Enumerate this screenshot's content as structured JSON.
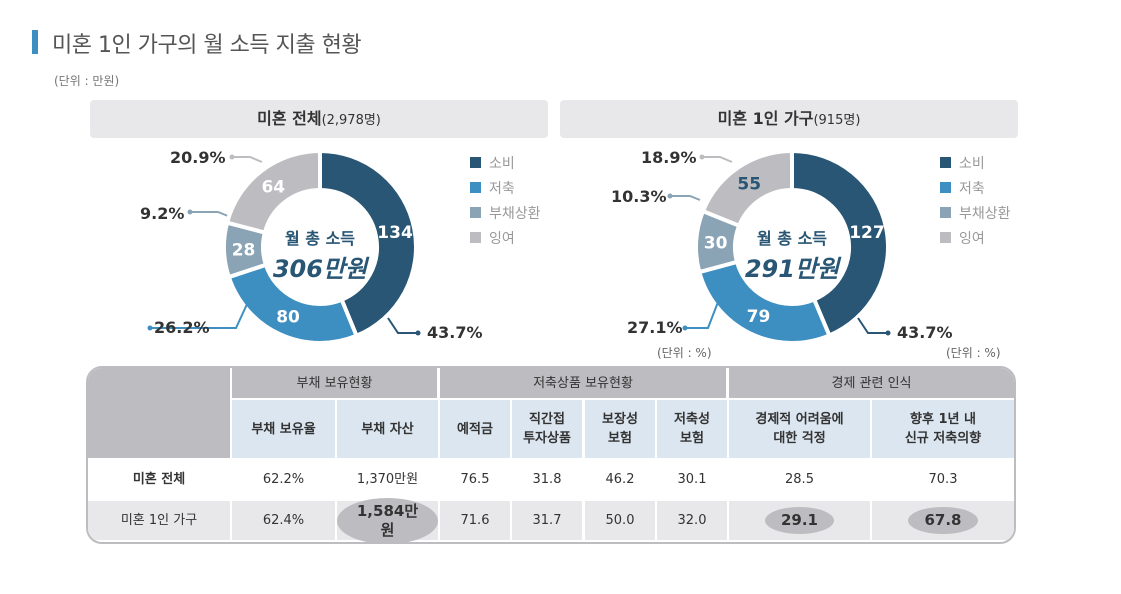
{
  "header": {
    "title": "미혼 1인 가구의 월 소득 지출 현황",
    "unit": "(단위 : 만원)"
  },
  "legend": [
    "소비",
    "저축",
    "부채상환",
    "잉여"
  ],
  "chart_data": [
    {
      "type": "pie",
      "title": "미혼 전체",
      "title_note": "(2,978명)",
      "center_label": "월 총 소득",
      "center_value": "306만원",
      "categories": [
        "소비",
        "저축",
        "부채상환",
        "잉여"
      ],
      "values": [
        134,
        80,
        28,
        64
      ],
      "percent_labels": [
        "43.7%",
        "26.2%",
        "9.2%",
        "20.9%"
      ],
      "unit_note": ""
    },
    {
      "type": "pie",
      "title": "미혼 1인 가구",
      "title_note": "(915명)",
      "center_label": "월 총 소득",
      "center_value": "291만원",
      "categories": [
        "소비",
        "저축",
        "부채상환",
        "잉여"
      ],
      "values": [
        127,
        79,
        30,
        55
      ],
      "percent_labels": [
        "43.7%",
        "27.1%",
        "10.3%",
        "18.9%"
      ],
      "unit_note": "(단위 : %)"
    }
  ],
  "chart_unit_notes": [
    "(단위 : %)",
    "(단위 : %)"
  ],
  "colors": {
    "consumption": "#285674",
    "savings": "#3e8fc1",
    "debt": "#8aa3b5",
    "surplus": "#bdbcc0"
  },
  "table": {
    "groups": [
      "부채 보유현황",
      "저축상품 보유현황",
      "경제 관련 인식"
    ],
    "columns": [
      "부채 보유율",
      "부채 자산",
      "예적금",
      "직간접\n투자상품",
      "보장성\n보험",
      "저축성\n보험",
      "경제적 어려움에\n대한 걱정",
      "향후 1년 내\n신규 저축의향"
    ],
    "rows": [
      {
        "label": "미혼 전체",
        "values": [
          "62.2%",
          "1,370만원",
          "76.5",
          "31.8",
          "46.2",
          "30.1",
          "28.5",
          "70.3"
        ]
      },
      {
        "label": "미혼 1인 가구",
        "values": [
          "62.4%",
          "1,584만원",
          "71.6",
          "31.7",
          "50.0",
          "32.0",
          "29.1",
          "67.8"
        ],
        "highlighted": [
          1,
          6,
          7
        ]
      }
    ]
  }
}
